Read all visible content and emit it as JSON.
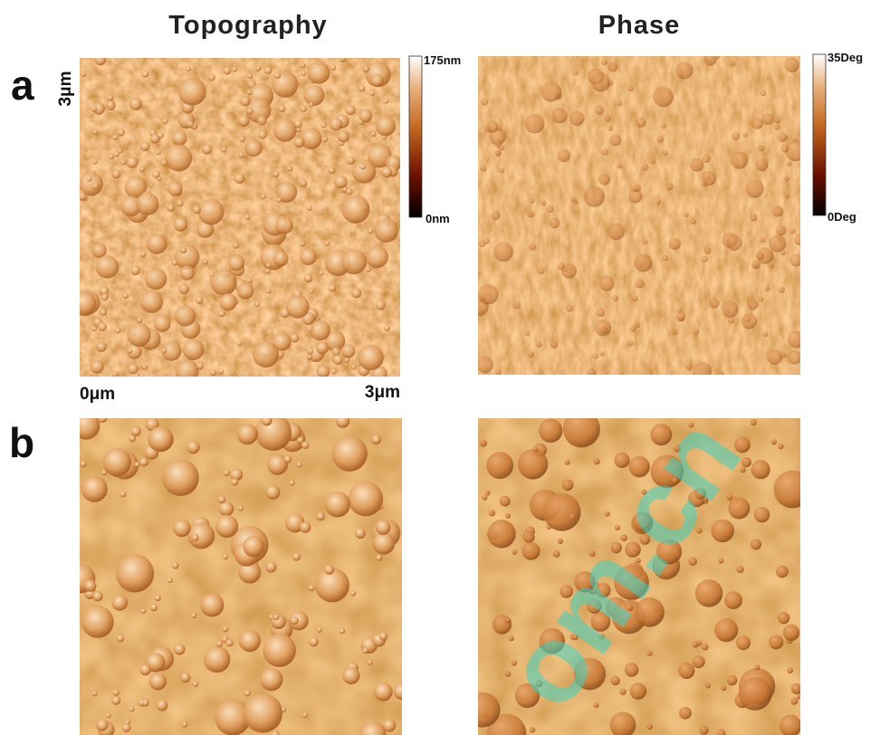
{
  "columns": {
    "left": "Topography",
    "right": "Phase"
  },
  "rows": {
    "a": "a",
    "b": "b"
  },
  "axis": {
    "y_top": "3μm",
    "x_start": "0μm",
    "x_end": "3μm"
  },
  "colorbars": {
    "topography": {
      "max": "175nm",
      "min": "0nm"
    },
    "phase": {
      "max": "35Deg",
      "min": "0Deg"
    }
  },
  "watermark": "om.cn"
}
